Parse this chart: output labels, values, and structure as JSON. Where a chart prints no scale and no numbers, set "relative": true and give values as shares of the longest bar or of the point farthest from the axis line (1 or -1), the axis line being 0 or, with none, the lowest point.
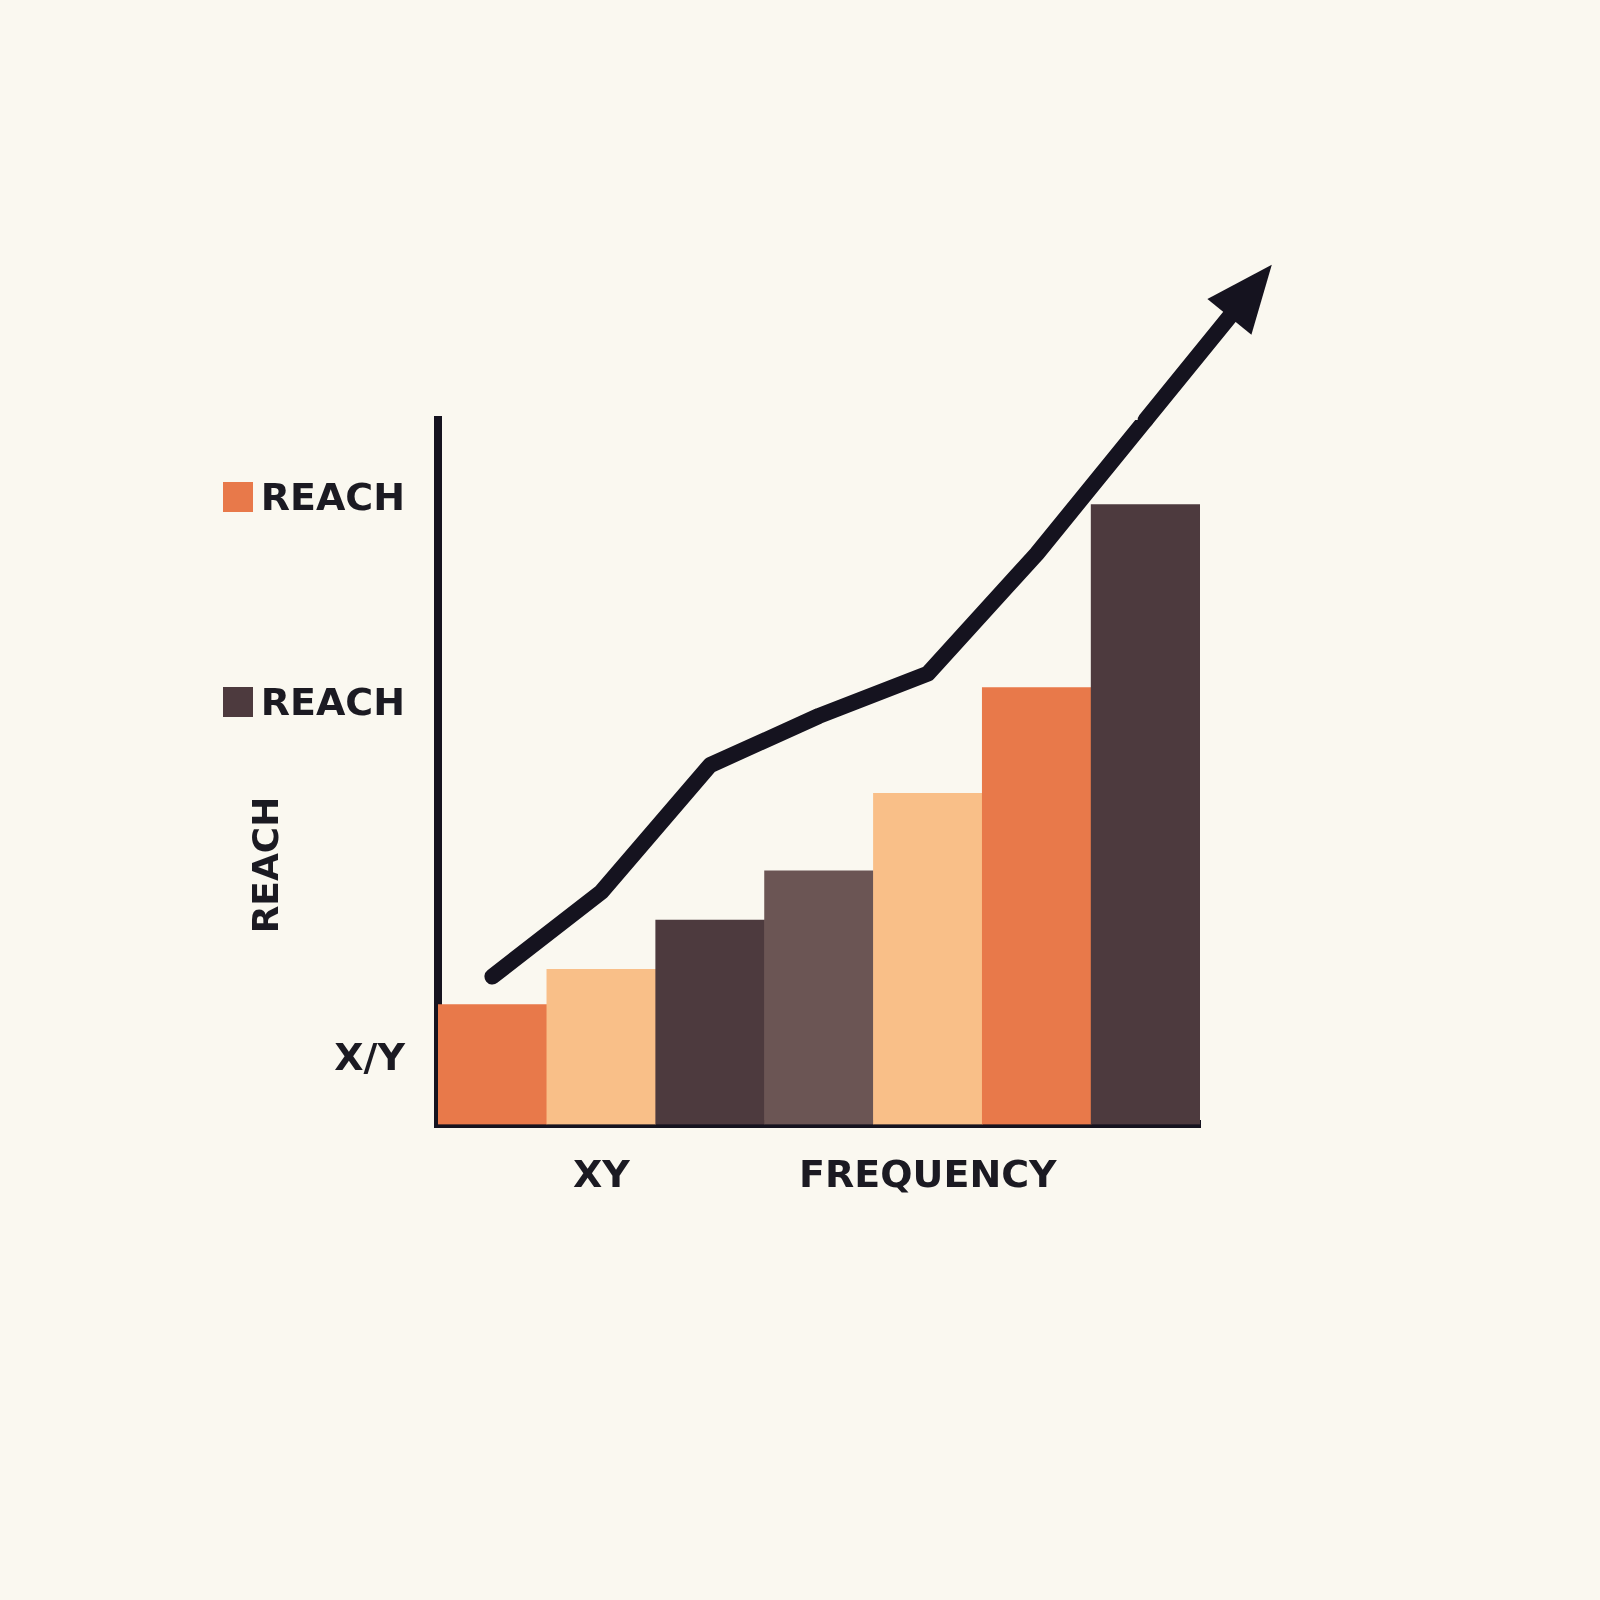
{
  "chart_data": {
    "type": "bar",
    "relative": true,
    "ylabel": "REACH",
    "categories": [
      null,
      "XY",
      null,
      null,
      "FREQUENCY",
      null,
      null
    ],
    "series": [
      {
        "colors": [
          "#e8794a",
          "#f9bf88",
          "#4d3a3e",
          "#6b5554",
          "#f9bf88",
          "#e8794a",
          "#4d3a3e"
        ],
        "values": [
          0.17,
          0.22,
          0.29,
          0.36,
          0.47,
          0.62,
          0.88
        ]
      },
      {
        "type": "line",
        "color": "#15131f",
        "values": [
          0.21,
          0.33,
          0.51,
          0.58,
          0.64,
          0.81,
          1.0
        ]
      }
    ],
    "annotations": [
      "REACH",
      "REACH",
      "X/Y"
    ],
    "grid": false,
    "legend": false,
    "marker": "none",
    "line_style": "solid"
  }
}
